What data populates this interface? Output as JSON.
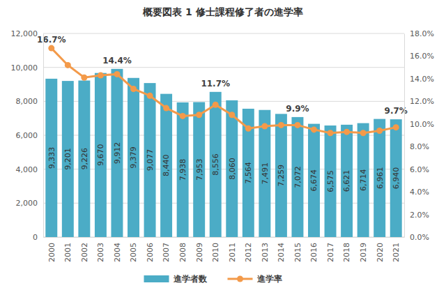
{
  "chart_data": {
    "type": "bar",
    "title": "概要図表 1 修士課程修了者の進学率",
    "categories": [
      "2000",
      "2001",
      "2002",
      "2003",
      "2004",
      "2005",
      "2006",
      "2007",
      "2008",
      "2009",
      "2010",
      "2011",
      "2012",
      "2013",
      "2014",
      "2015",
      "2016",
      "2017",
      "2018",
      "2019",
      "2020",
      "2021"
    ],
    "series": [
      {
        "name": "進学者数",
        "type": "bar",
        "color": "#4bacc6",
        "values": [
          9333,
          9201,
          9226,
          9670,
          9912,
          9379,
          9077,
          8440,
          7938,
          7953,
          8556,
          8060,
          7564,
          7491,
          7259,
          7072,
          6674,
          6575,
          6621,
          6714,
          6961,
          6940
        ],
        "value_labels": [
          "9,333",
          "9,201",
          "9,226",
          "9,670",
          "9,912",
          "9,379",
          "9,077",
          "8,440",
          "7,938",
          "7,953",
          "8,556",
          "8,060",
          "7,564",
          "7,491",
          "7,259",
          "7,072",
          "6,674",
          "6,575",
          "6,621",
          "6,714",
          "6,961",
          "6,940"
        ]
      },
      {
        "name": "進学率",
        "type": "line",
        "axis": "y2",
        "color": "#f39a4a",
        "marker": "circle",
        "values": [
          16.7,
          15.2,
          14.1,
          14.3,
          14.4,
          13.1,
          12.5,
          11.4,
          10.7,
          10.8,
          11.7,
          10.8,
          9.6,
          9.8,
          9.9,
          9.9,
          9.5,
          9.2,
          9.3,
          9.2,
          9.4,
          9.7
        ],
        "value_labels": [
          "16.7%",
          null,
          null,
          null,
          "14.4%",
          null,
          null,
          null,
          null,
          null,
          "11.7%",
          null,
          null,
          null,
          null,
          "9.9%",
          null,
          null,
          null,
          null,
          null,
          "9.7%"
        ]
      }
    ],
    "ylim": [
      0,
      12000
    ],
    "yticks": [
      0,
      {
        "value": 2000,
        "label": "2,000"
      },
      {
        "value": 4000,
        "label": "4,000"
      },
      {
        "value": 6000,
        "label": "6,000"
      },
      {
        "value": 8000,
        "label": "8,000"
      },
      {
        "value": 10000,
        "label": "10,000"
      },
      {
        "value": 12000,
        "label": "12,000"
      }
    ],
    "y2lim": [
      0,
      18
    ],
    "y2ticks": [
      {
        "value": 0,
        "label": "0.0%"
      },
      {
        "value": 2,
        "label": "2.0%"
      },
      {
        "value": 4,
        "label": "4.0%"
      },
      {
        "value": 6,
        "label": "6.0%"
      },
      {
        "value": 8,
        "label": "8.0%"
      },
      {
        "value": 10,
        "label": "10.0%"
      },
      {
        "value": 12,
        "label": "12.0%"
      },
      {
        "value": 14,
        "label": "14.0%"
      },
      {
        "value": 16,
        "label": "16.0%"
      },
      {
        "value": 18,
        "label": "18.0%"
      }
    ],
    "grid": true,
    "legend": "bottom",
    "data_labels": true
  }
}
